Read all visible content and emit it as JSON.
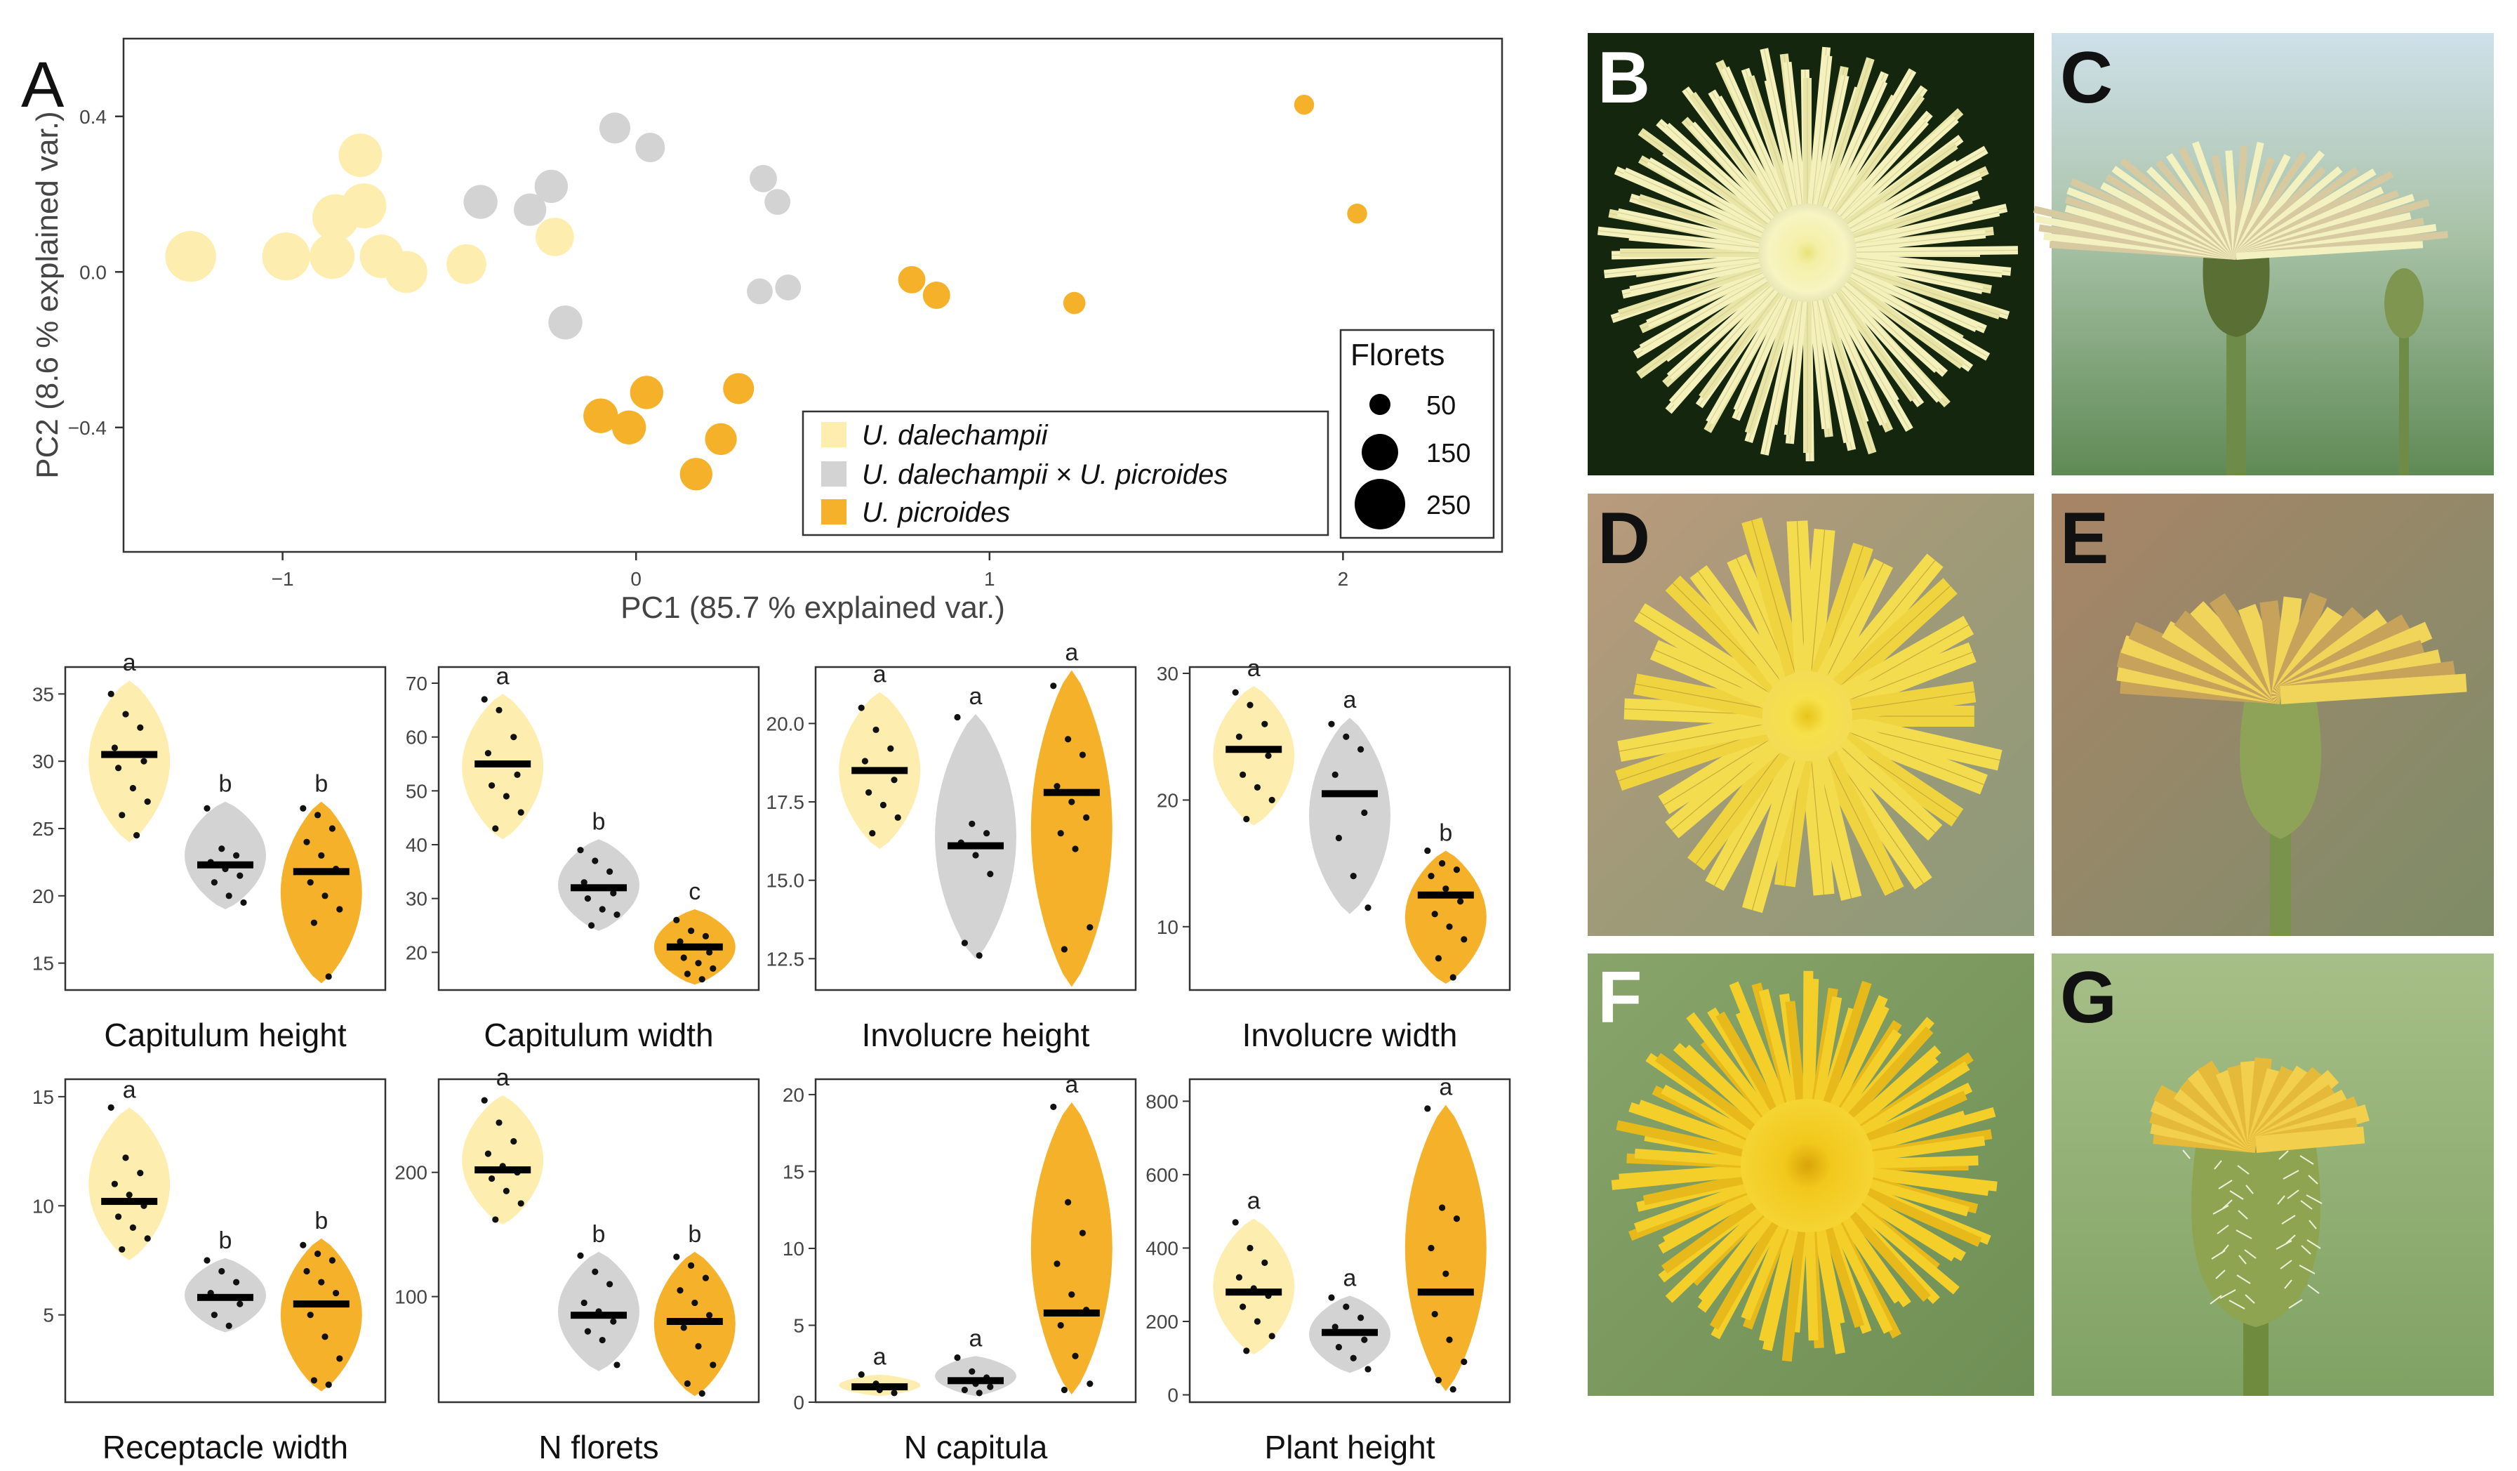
{
  "panel_letters": {
    "a": "A",
    "b": "B",
    "c": "C",
    "d": "D",
    "e": "E",
    "f": "F",
    "g": "G"
  },
  "colors": {
    "dalechampii": "#fdeeb0",
    "hybrid": "#d3d3d3",
    "picroides": "#f5b12a",
    "median": "#000000",
    "point": "#111111"
  },
  "chart_data": [
    {
      "id": "pca",
      "type": "scatter",
      "title": "",
      "xlabel": "PC1 (85.7 % explained var.)",
      "ylabel": "PC2 (8.6 % explained var.)",
      "xlim": [
        -1.45,
        2.45
      ],
      "ylim": [
        -0.72,
        0.6
      ],
      "xticks": [
        -1,
        0,
        1,
        2
      ],
      "xtick_labels": [
        "−1",
        "0",
        "1",
        "2"
      ],
      "yticks": [
        -0.4,
        0,
        0.4
      ],
      "ytick_labels": [
        "−0.4",
        "0.0",
        "0.4"
      ],
      "grid": false,
      "legend": {
        "entries": [
          {
            "label": "U. dalechampii",
            "group": "dalechampii"
          },
          {
            "label": "U. dalechampii × U. picroides",
            "group": "hybrid"
          },
          {
            "label": "U. picroides",
            "group": "picroides"
          }
        ],
        "position": "bottom-right"
      },
      "size_legend": {
        "title": "Florets",
        "values": [
          50,
          150,
          250
        ]
      },
      "series": [
        {
          "name": "U. dalechampii",
          "group": "dalechampii",
          "points": [
            {
              "x": -1.26,
              "y": 0.04,
              "florets": 250
            },
            {
              "x": -0.99,
              "y": 0.04,
              "florets": 230
            },
            {
              "x": -0.86,
              "y": 0.04,
              "florets": 210
            },
            {
              "x": -0.85,
              "y": 0.14,
              "florets": 220
            },
            {
              "x": -0.78,
              "y": 0.3,
              "florets": 200
            },
            {
              "x": -0.77,
              "y": 0.17,
              "florets": 210
            },
            {
              "x": -0.72,
              "y": 0.04,
              "florets": 200
            },
            {
              "x": -0.65,
              "y": 0.0,
              "florets": 190
            },
            {
              "x": -0.48,
              "y": 0.02,
              "florets": 175
            },
            {
              "x": -0.23,
              "y": 0.09,
              "florets": 165
            }
          ]
        },
        {
          "name": "U. dalechampii × U. picroides",
          "group": "hybrid",
          "points": [
            {
              "x": -0.44,
              "y": 0.18,
              "florets": 135
            },
            {
              "x": -0.3,
              "y": 0.16,
              "florets": 125
            },
            {
              "x": -0.24,
              "y": 0.22,
              "florets": 130
            },
            {
              "x": -0.2,
              "y": -0.13,
              "florets": 135
            },
            {
              "x": -0.06,
              "y": 0.37,
              "florets": 115
            },
            {
              "x": 0.04,
              "y": 0.32,
              "florets": 105
            },
            {
              "x": 0.36,
              "y": 0.24,
              "florets": 90
            },
            {
              "x": 0.4,
              "y": 0.18,
              "florets": 80
            },
            {
              "x": 0.35,
              "y": -0.05,
              "florets": 80
            },
            {
              "x": 0.43,
              "y": -0.04,
              "florets": 80
            }
          ]
        },
        {
          "name": "U. picroides",
          "group": "picroides",
          "points": [
            {
              "x": -0.1,
              "y": -0.37,
              "florets": 140
            },
            {
              "x": -0.02,
              "y": -0.4,
              "florets": 135
            },
            {
              "x": 0.03,
              "y": -0.31,
              "florets": 130
            },
            {
              "x": 0.24,
              "y": -0.43,
              "florets": 120
            },
            {
              "x": 0.29,
              "y": -0.3,
              "florets": 115
            },
            {
              "x": 0.17,
              "y": -0.52,
              "florets": 125
            },
            {
              "x": 0.78,
              "y": -0.02,
              "florets": 90
            },
            {
              "x": 0.85,
              "y": -0.06,
              "florets": 90
            },
            {
              "x": 1.24,
              "y": -0.08,
              "florets": 55
            },
            {
              "x": 1.89,
              "y": 0.43,
              "florets": 40
            },
            {
              "x": 2.04,
              "y": 0.15,
              "florets": 40
            }
          ]
        }
      ]
    },
    {
      "id": "capitulum-height",
      "type": "violin",
      "title": "Capitulum height",
      "ylim": [
        13,
        37
      ],
      "yticks": [
        15,
        20,
        25,
        30,
        35
      ],
      "ytick_labels": [
        "15",
        "20",
        "25",
        "30",
        "35"
      ],
      "groups": [
        {
          "name": "U. dalechampii",
          "group": "dalechampii",
          "median": 30.5,
          "min": 24,
          "max": 36,
          "letter": "a",
          "points": [
            35,
            33.5,
            32.5,
            31,
            30.5,
            30,
            29.5,
            28,
            27,
            26,
            24.5
          ]
        },
        {
          "name": "U. dalechampii × U. picroides",
          "group": "hybrid",
          "median": 22.3,
          "min": 19,
          "max": 27,
          "letter": "b",
          "points": [
            26.5,
            23.5,
            23,
            22.5,
            22,
            21.5,
            21,
            20,
            19.5
          ]
        },
        {
          "name": "U. picroides",
          "group": "picroides",
          "median": 21.8,
          "min": 13.5,
          "max": 27,
          "letter": "b",
          "points": [
            26.5,
            26,
            25,
            24,
            23,
            22,
            21,
            20,
            19,
            18,
            14
          ]
        }
      ]
    },
    {
      "id": "capitulum-width",
      "type": "violin",
      "title": "Capitulum width",
      "ylim": [
        13,
        73
      ],
      "yticks": [
        20,
        30,
        40,
        50,
        60,
        70
      ],
      "ytick_labels": [
        "20",
        "30",
        "40",
        "50",
        "60",
        "70"
      ],
      "groups": [
        {
          "name": "U. dalechampii",
          "group": "dalechampii",
          "median": 55,
          "min": 41,
          "max": 68,
          "letter": "a",
          "points": [
            67,
            65,
            60,
            57,
            55,
            53,
            51,
            49,
            46,
            43
          ]
        },
        {
          "name": "U. dalechampii × U. picroides",
          "group": "hybrid",
          "median": 32,
          "min": 24,
          "max": 41,
          "letter": "b",
          "points": [
            39,
            37,
            35,
            33,
            32,
            31,
            30,
            28,
            27,
            25
          ]
        },
        {
          "name": "U. picroides",
          "group": "picroides",
          "median": 21,
          "min": 14,
          "max": 28,
          "letter": "c",
          "points": [
            26,
            24,
            23,
            22,
            21,
            20,
            19,
            18,
            17,
            16,
            15
          ]
        }
      ]
    },
    {
      "id": "involucre-height",
      "type": "violin",
      "title": "Involucre height",
      "ylim": [
        11.5,
        21.8
      ],
      "yticks": [
        12.5,
        15,
        17.5,
        20
      ],
      "ytick_labels": [
        "12.5",
        "15.0",
        "17.5",
        "20.0"
      ],
      "groups": [
        {
          "name": "U. dalechampii",
          "group": "dalechampii",
          "median": 18.5,
          "min": 16,
          "max": 21,
          "letter": "a",
          "points": [
            20.5,
            19.8,
            19.2,
            18.8,
            18.5,
            18.2,
            17.8,
            17.4,
            17,
            16.5
          ]
        },
        {
          "name": "U. dalechampii × U. picroides",
          "group": "hybrid",
          "median": 16.1,
          "min": 12.5,
          "max": 20.3,
          "letter": "a",
          "points": [
            20.2,
            16.8,
            16.5,
            16.2,
            15.8,
            15.2,
            13,
            12.6
          ]
        },
        {
          "name": "U. picroides",
          "group": "picroides",
          "median": 17.8,
          "min": 11.6,
          "max": 21.7,
          "letter": "a",
          "points": [
            21.2,
            19.5,
            19,
            18,
            17.5,
            17,
            16.5,
            16,
            13.5,
            12.8
          ]
        }
      ]
    },
    {
      "id": "involucre-width",
      "type": "violin",
      "title": "Involucre width",
      "ylim": [
        5,
        30.5
      ],
      "yticks": [
        10,
        20,
        30
      ],
      "ytick_labels": [
        "10",
        "20",
        "30"
      ],
      "groups": [
        {
          "name": "U. dalechampii",
          "group": "dalechampii",
          "median": 24,
          "min": 18,
          "max": 29,
          "letter": "a",
          "points": [
            28.5,
            27.5,
            26,
            25,
            24,
            23.5,
            22,
            21,
            20,
            18.5
          ]
        },
        {
          "name": "U. dalechampii × U. picroides",
          "group": "hybrid",
          "median": 20.5,
          "min": 11,
          "max": 26.5,
          "letter": "a",
          "points": [
            26,
            25,
            24,
            22,
            20.5,
            19,
            17,
            14,
            11.5
          ]
        },
        {
          "name": "U. picroides",
          "group": "picroides",
          "median": 12.5,
          "min": 5.5,
          "max": 16,
          "letter": "b",
          "points": [
            16,
            15,
            14.5,
            14,
            13,
            12,
            11,
            10,
            9,
            7.5,
            6
          ]
        }
      ]
    },
    {
      "id": "receptacle-width",
      "type": "violin",
      "title": "Receptacle width",
      "ylim": [
        1,
        15.8
      ],
      "yticks": [
        5,
        10,
        15
      ],
      "ytick_labels": [
        "5",
        "10",
        "15"
      ],
      "groups": [
        {
          "name": "U. dalechampii",
          "group": "dalechampii",
          "median": 10.2,
          "min": 7.5,
          "max": 14.5,
          "letter": "a",
          "points": [
            14.5,
            12.2,
            11.5,
            11,
            10.5,
            10,
            9.5,
            9,
            8.5,
            8
          ]
        },
        {
          "name": "U. dalechampii × U. picroides",
          "group": "hybrid",
          "median": 5.8,
          "min": 4.2,
          "max": 7.6,
          "letter": "b",
          "points": [
            7.5,
            7,
            6.5,
            6,
            5.8,
            5.5,
            5,
            4.5
          ]
        },
        {
          "name": "U. picroides",
          "group": "picroides",
          "median": 5.5,
          "min": 1.5,
          "max": 8.5,
          "letter": "b",
          "points": [
            8.2,
            7.8,
            7.5,
            7,
            6.5,
            6,
            5,
            4,
            3,
            2,
            1.8
          ]
        }
      ]
    },
    {
      "id": "n-florets",
      "type": "violin",
      "title": "N florets",
      "ylim": [
        15,
        275
      ],
      "yticks": [
        100,
        200
      ],
      "ytick_labels": [
        "100",
        "200"
      ],
      "groups": [
        {
          "name": "U. dalechampii",
          "group": "dalechampii",
          "median": 202,
          "min": 158,
          "max": 262,
          "letter": "a",
          "points": [
            258,
            240,
            225,
            215,
            205,
            200,
            195,
            185,
            175,
            162
          ]
        },
        {
          "name": "U. dalechampii × U. picroides",
          "group": "hybrid",
          "median": 85,
          "min": 40,
          "max": 136,
          "letter": "b",
          "points": [
            133,
            120,
            110,
            95,
            88,
            80,
            72,
            65,
            45
          ]
        },
        {
          "name": "U. picroides",
          "group": "picroides",
          "median": 80,
          "min": 20,
          "max": 136,
          "letter": "b",
          "points": [
            132,
            125,
            115,
            105,
            95,
            85,
            75,
            60,
            45,
            30,
            22
          ]
        }
      ]
    },
    {
      "id": "n-capitula",
      "type": "violin",
      "title": "N capitula",
      "ylim": [
        0,
        21
      ],
      "yticks": [
        0,
        5,
        10,
        15,
        20
      ],
      "ytick_labels": [
        "0",
        "5",
        "10",
        "15",
        "20"
      ],
      "groups": [
        {
          "name": "U. dalechampii",
          "group": "dalechampii",
          "median": 1,
          "min": 0.4,
          "max": 1.8,
          "letter": "a",
          "points": [
            1.8,
            1.2,
            1,
            1,
            0.8,
            0.6
          ]
        },
        {
          "name": "U. dalechampii × U. picroides",
          "group": "hybrid",
          "median": 1.4,
          "min": 0.4,
          "max": 3,
          "letter": "a",
          "points": [
            2.9,
            2,
            1.6,
            1.4,
            1.2,
            1,
            0.8,
            0.6
          ]
        },
        {
          "name": "U. picroides",
          "group": "picroides",
          "median": 5.8,
          "min": 0.5,
          "max": 19.5,
          "letter": "a",
          "points": [
            19.2,
            13,
            11,
            9,
            7,
            6,
            5,
            3,
            1.2,
            0.8
          ]
        }
      ]
    },
    {
      "id": "plant-height",
      "type": "violin",
      "title": "Plant height",
      "ylim": [
        -20,
        860
      ],
      "yticks": [
        0,
        200,
        400,
        600,
        800
      ],
      "ytick_labels": [
        "0",
        "200",
        "400",
        "600",
        "800"
      ],
      "groups": [
        {
          "name": "U. dalechampii",
          "group": "dalechampii",
          "median": 280,
          "min": 110,
          "max": 480,
          "letter": "a",
          "points": [
            470,
            400,
            360,
            320,
            290,
            270,
            240,
            200,
            160,
            120
          ]
        },
        {
          "name": "U. dalechampii × U. picroides",
          "group": "hybrid",
          "median": 170,
          "min": 60,
          "max": 270,
          "letter": "a",
          "points": [
            265,
            240,
            210,
            185,
            170,
            150,
            130,
            100,
            70
          ]
        },
        {
          "name": "U. picroides",
          "group": "picroides",
          "median": 280,
          "min": 10,
          "max": 790,
          "letter": "a",
          "points": [
            780,
            510,
            480,
            400,
            330,
            280,
            220,
            150,
            90,
            40,
            15
          ]
        }
      ]
    }
  ]
}
